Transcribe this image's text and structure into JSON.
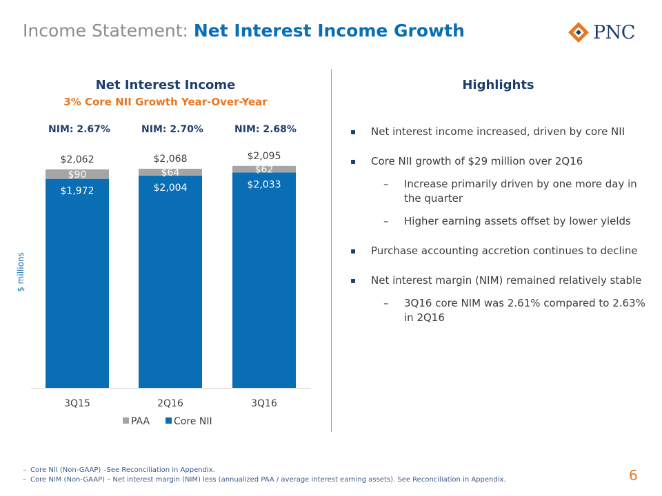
{
  "header": {
    "title_prefix": "Income Statement:",
    "title_main": "Net Interest Income Growth",
    "logo_text": "PNC"
  },
  "chart_data": {
    "type": "bar",
    "stacked": true,
    "title": "Net Interest Income",
    "subtitle": "3% Core NII Growth Year-Over-Year",
    "ylabel": "$ millions",
    "categories": [
      "3Q15",
      "2Q16",
      "3Q16"
    ],
    "series": [
      {
        "name": "Core NII",
        "values": [
          1972,
          2004,
          2033
        ],
        "labels": [
          "$1,972",
          "$2,004",
          "$2,033"
        ],
        "color": "#0a6eb4"
      },
      {
        "name": "PAA",
        "values": [
          90,
          64,
          62
        ],
        "labels": [
          "$90",
          "$64",
          "$62"
        ],
        "color": "#a5a5a5"
      }
    ],
    "totals": [
      2062,
      2068,
      2095
    ],
    "total_labels": [
      "$2,062",
      "$2,068",
      "$2,095"
    ],
    "nim_labels": [
      "NIM: 2.67%",
      "NIM: 2.70%",
      "NIM: 2.68%"
    ],
    "ylim": [
      0,
      2100
    ],
    "grid": false,
    "legend": [
      {
        "name": "PAA",
        "color": "#a5a5a5"
      },
      {
        "name": "Core NII",
        "color": "#0a6eb4"
      }
    ],
    "legend_position": "bottom"
  },
  "highlights": {
    "title": "Highlights",
    "items": [
      {
        "text": "Net interest income increased, driven by core NII",
        "level": 1
      },
      {
        "text": "Core NII growth of $29 million over 2Q16",
        "level": 1
      },
      {
        "text": "Increase primarily driven by one more day in the quarter",
        "level": 2
      },
      {
        "text": "Higher earning assets offset by lower yields",
        "level": 2
      },
      {
        "text": "Purchase accounting accretion continues to decline",
        "level": 1
      },
      {
        "text": "Net interest margin (NIM) remained relatively stable",
        "level": 1
      },
      {
        "text": "3Q16 core NIM was 2.61% compared to 2.63% in 2Q16",
        "level": 2
      }
    ]
  },
  "footnotes": [
    "Core NII (Non-GAAP) –See Reconciliation in Appendix.",
    "Core NIM (Non-GAAP) – Net interest margin (NIM) less (annualized PAA / average interest earning assets).  See Reconciliation in Appendix."
  ],
  "page_number": "6",
  "colors": {
    "brand_blue": "#0a6eb4",
    "navy": "#1e3e6e",
    "orange": "#e87722",
    "gray": "#a5a5a5"
  }
}
